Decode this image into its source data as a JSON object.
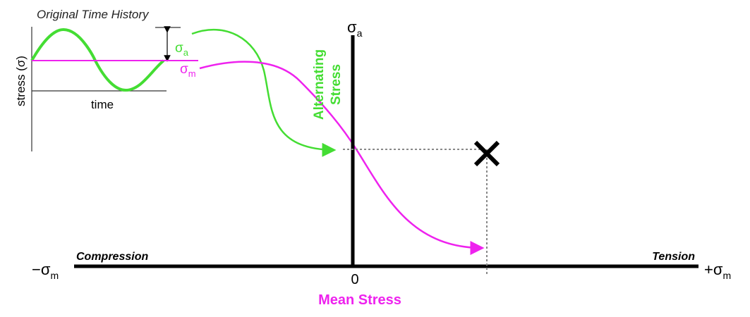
{
  "inset": {
    "title": "Original Time History",
    "y_label": "stress (σ)",
    "x_label": "time",
    "amp_label": {
      "symbol": "σ",
      "sub": "a"
    },
    "mean_label": {
      "symbol": "σ",
      "sub": "m"
    }
  },
  "axes": {
    "y_label": {
      "symbol": "σ",
      "sub": "a"
    },
    "y_title": [
      "Alternating",
      "Stress"
    ],
    "x_title": "Mean Stress",
    "origin": "0",
    "left_label": {
      "symbol": "−σ",
      "sub": "m"
    },
    "right_label": {
      "symbol": "+σ",
      "sub": "m"
    },
    "left_region": "Compression",
    "right_region": "Tension"
  }
}
